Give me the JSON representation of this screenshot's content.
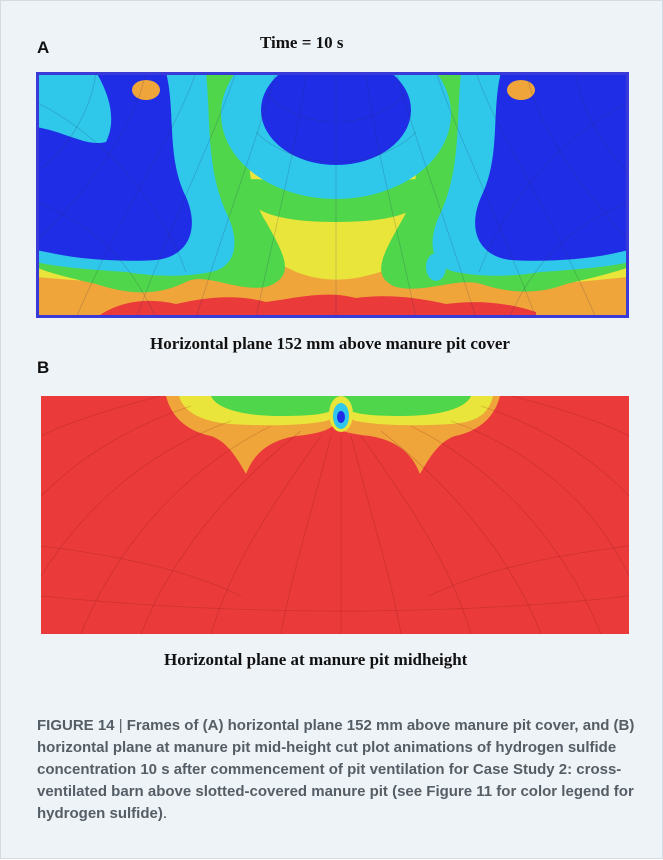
{
  "panel_a": {
    "letter": "A",
    "title": "Time = 10 s",
    "label": "Horizontal plane 152 mm above manure pit cover"
  },
  "panel_b": {
    "letter": "B",
    "label": "Horizontal plane at manure pit midheight"
  },
  "caption": {
    "figure_label": "FIGURE 14",
    "separator": " | ",
    "text": "Frames of (A) horizontal plane 152 mm above manure pit cover, and (B) horizontal plane at manure pit mid-height cut plot animations of hydrogen sulfide concentration 10 s after commencement of pit ventilation for Case Study 2: cross-ventilated barn above slotted-covered manure pit (see Figure 11 for color legend for hydrogen sulfide)",
    "end": "."
  },
  "colors": {
    "blue": "#1f2ee6",
    "cyan": "#2fc8ea",
    "green": "#4fd64a",
    "yellow": "#e9e53a",
    "orange": "#f0a53a",
    "red": "#ea3a3a",
    "border": "#3a3ad8"
  }
}
